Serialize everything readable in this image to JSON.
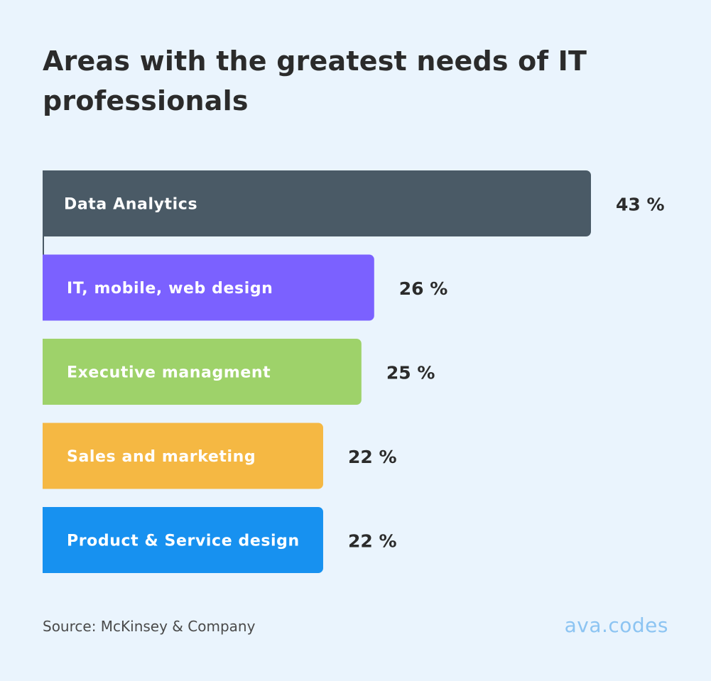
{
  "chart_data": {
    "type": "bar",
    "orientation": "horizontal",
    "title": "Areas with the greatest needs of IT professionals",
    "categories": [
      "Data Analytics",
      "IT, mobile, web design",
      "Executive managment",
      "Sales and marketing",
      "Product & Service design"
    ],
    "values": [
      43,
      26,
      25,
      22,
      22
    ],
    "value_labels": [
      "43 %",
      "26 %",
      "25 %",
      "22 %",
      "22 %"
    ],
    "colors": [
      "#4a5a66",
      "#7b61ff",
      "#9ed26a",
      "#f5b843",
      "#1791f0"
    ],
    "xlim": [
      0,
      43
    ],
    "grid": false,
    "legend": "none"
  },
  "footer": {
    "source": "Source: McKinsey & Company",
    "brand": "ava.codes"
  }
}
